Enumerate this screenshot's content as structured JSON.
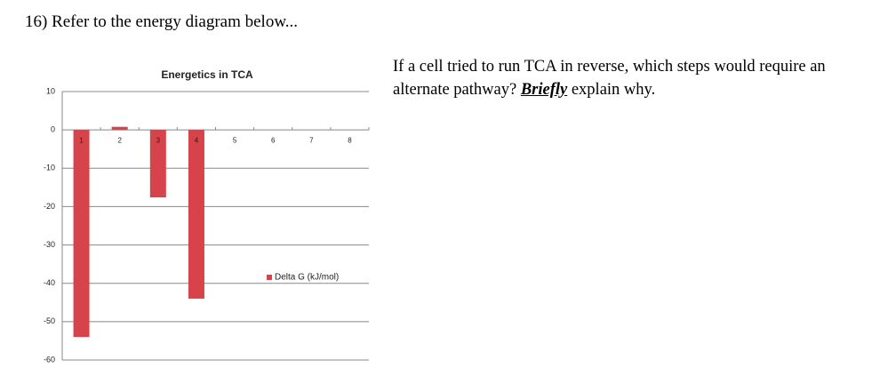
{
  "question": "16) Refer to the energy diagram below...",
  "prompt": {
    "before": "If a cell tried to run TCA in reverse, which steps would require an alternate pathway?",
    "emphasis": "Briefly",
    "after": "explain why."
  },
  "chart_data": {
    "type": "bar",
    "title": "Energetics in TCA",
    "categories": [
      "1",
      "2",
      "3",
      "4",
      "5",
      "6",
      "7",
      "8"
    ],
    "series": [
      {
        "name": "Delta G (kJ/mol)",
        "color": "#d6434b",
        "values": [
          -54,
          0.8,
          -17.6,
          -44,
          0,
          0,
          0,
          0
        ]
      }
    ],
    "ylim": [
      -60,
      10
    ],
    "yticks": [
      -60,
      -50,
      -40,
      -30,
      -20,
      -10,
      0,
      10
    ],
    "grid": true,
    "legend": "right"
  }
}
